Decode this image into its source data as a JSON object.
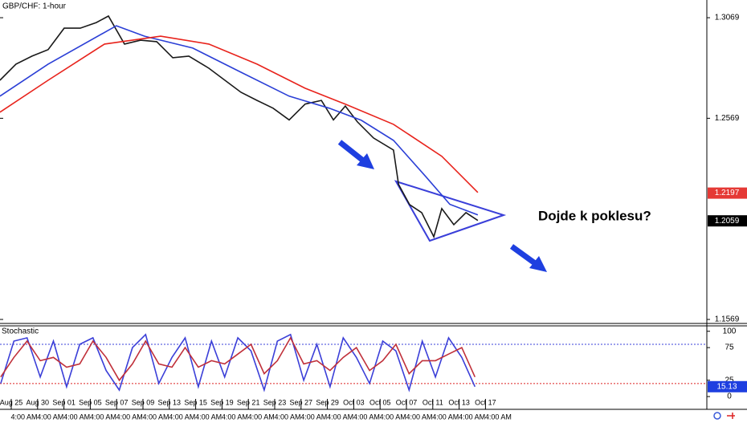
{
  "chart_data": [
    {
      "type": "line",
      "title": "GBP/CHF: 1-hour",
      "annotation": "Dojde k poklesu?",
      "xlim": [
        -0.4268,
        26.4024
      ],
      "xticks": [
        {
          "value": 0,
          "label": "Aug 25"
        },
        {
          "value": 1,
          "label": "Aug 30"
        },
        {
          "value": 2,
          "label": "Sep 01"
        },
        {
          "value": 3,
          "label": "Sep 05"
        },
        {
          "value": 4,
          "label": "Sep 07"
        },
        {
          "value": 5,
          "label": "Sep 09"
        },
        {
          "value": 6,
          "label": "Sep 13"
        },
        {
          "value": 7,
          "label": "Sep 15"
        },
        {
          "value": 8,
          "label": "Sep 19"
        },
        {
          "value": 9,
          "label": "Sep 21"
        },
        {
          "value": 10,
          "label": "Sep 23"
        },
        {
          "value": 11,
          "label": "Sep 27"
        },
        {
          "value": 12,
          "label": "Sep 29"
        },
        {
          "value": 13,
          "label": "Oct 03"
        },
        {
          "value": 14,
          "label": "Oct 05"
        },
        {
          "value": 15,
          "label": "Oct 07"
        },
        {
          "value": 16,
          "label": "Oct 11"
        },
        {
          "value": 17,
          "label": "Oct 13"
        },
        {
          "value": 18,
          "label": "Oct 17"
        }
      ],
      "time_labels": [
        "4:00 AM",
        "4:00 AM",
        "4:00 AM",
        "4:00 AM",
        "4:00 AM",
        "4:00 AM",
        "4:00 AM",
        "4:00 AM",
        "4:00 AM",
        "4:00 AM",
        "4:00 AM",
        "4:00 AM",
        "4:00 AM",
        "4:00 AM",
        "4:00 AM",
        "4:00 AM",
        "4:00 AM",
        "4:00 AM",
        "4:00 AM"
      ],
      "ylim": [
        1.1549,
        1.3157
      ],
      "yticks": [
        1.3069,
        1.2569,
        1.1569
      ],
      "price_labels": [
        {
          "value": 1.2197,
          "color": "#e53935"
        },
        {
          "value": 1.2059,
          "color": "#000000"
        }
      ],
      "series": [
        {
          "color": "#1a1a1a",
          "x": [
            -0.43,
            0.18,
            0.79,
            1.4,
            2.01,
            2.62,
            3.23,
            3.69,
            4.3,
            4.91,
            5.52,
            6.13,
            6.74,
            7.5,
            8.11,
            8.72,
            9.33,
            9.94,
            10.55,
            11.16,
            11.77,
            12.23,
            12.68,
            13.14,
            13.75,
            14.51,
            14.7,
            15.12,
            15.58,
            16.04,
            16.34,
            16.8,
            17.26,
            17.71
          ],
          "values": [
            1.2758,
            1.2838,
            1.2878,
            1.291,
            1.3017,
            1.3017,
            1.3045,
            1.3077,
            1.2938,
            1.2957,
            1.295,
            1.287,
            1.2878,
            1.2818,
            1.2758,
            1.2698,
            1.2658,
            1.2619,
            1.2561,
            1.264,
            1.2658,
            1.2561,
            1.263,
            1.2551,
            1.2471,
            1.2411,
            1.224,
            1.214,
            1.21,
            1.198,
            1.212,
            1.204,
            1.21,
            1.2061
          ]
        },
        {
          "color": "#2b3fd6",
          "x": [
            -0.43,
            1.4,
            3.99,
            5.06,
            6.89,
            8.72,
            10.55,
            12.07,
            13.29,
            14.51,
            15.73,
            16.65,
            17.71
          ],
          "values": [
            1.2679,
            1.2838,
            1.3029,
            1.2977,
            1.2918,
            1.2798,
            1.2679,
            1.2619,
            1.2559,
            1.2459,
            1.228,
            1.2141,
            1.2089
          ]
        },
        {
          "color": "#e8231c",
          "x": [
            -0.43,
            1.4,
            3.54,
            5.67,
            7.5,
            9.33,
            11.16,
            12.68,
            14.51,
            16.34,
            17.71
          ],
          "values": [
            1.2599,
            1.2758,
            1.2938,
            1.2977,
            1.2938,
            1.2838,
            1.2718,
            1.2639,
            1.2539,
            1.238,
            1.22
          ]
        }
      ]
    },
    {
      "type": "line",
      "title": "Stochastic",
      "ylim": [
        -4.8,
        108.3
      ],
      "yticks": [
        100,
        75,
        25,
        0
      ],
      "levels": [
        80,
        20
      ],
      "current_label": {
        "value": 15.13,
        "label": "15.13"
      },
      "series": [
        {
          "color": "#3b3fd8",
          "x": [
            -0.4,
            0.1,
            0.6,
            1.1,
            1.6,
            2.1,
            2.6,
            3.1,
            3.6,
            4.1,
            4.6,
            5.1,
            5.6,
            6.1,
            6.6,
            7.1,
            7.6,
            8.1,
            8.6,
            9.1,
            9.6,
            10.1,
            10.6,
            11.1,
            11.6,
            12.1,
            12.6,
            13.1,
            13.6,
            14.1,
            14.6,
            15.1,
            15.6,
            16.1,
            16.6,
            17.1,
            17.6
          ],
          "values": [
            20,
            85,
            90,
            30,
            85,
            15,
            80,
            90,
            40,
            10,
            75,
            95,
            20,
            60,
            90,
            15,
            85,
            30,
            90,
            70,
            10,
            85,
            95,
            25,
            80,
            15,
            90,
            60,
            20,
            85,
            70,
            10,
            85,
            30,
            90,
            60,
            15.13
          ]
        },
        {
          "color": "#c0303a",
          "x": [
            -0.4,
            0.1,
            0.6,
            1.1,
            1.6,
            2.1,
            2.6,
            3.1,
            3.6,
            4.1,
            4.6,
            5.1,
            5.6,
            6.1,
            6.6,
            7.1,
            7.6,
            8.1,
            8.6,
            9.1,
            9.6,
            10.1,
            10.6,
            11.1,
            11.6,
            12.1,
            12.6,
            13.1,
            13.6,
            14.1,
            14.6,
            15.1,
            15.6,
            16.1,
            16.6,
            17.1,
            17.6
          ],
          "values": [
            30,
            60,
            85,
            55,
            60,
            45,
            50,
            85,
            60,
            25,
            50,
            85,
            50,
            45,
            75,
            45,
            55,
            50,
            65,
            80,
            35,
            55,
            90,
            50,
            55,
            40,
            60,
            75,
            40,
            55,
            80,
            35,
            55,
            55,
            65,
            75,
            30
          ]
        }
      ]
    }
  ]
}
